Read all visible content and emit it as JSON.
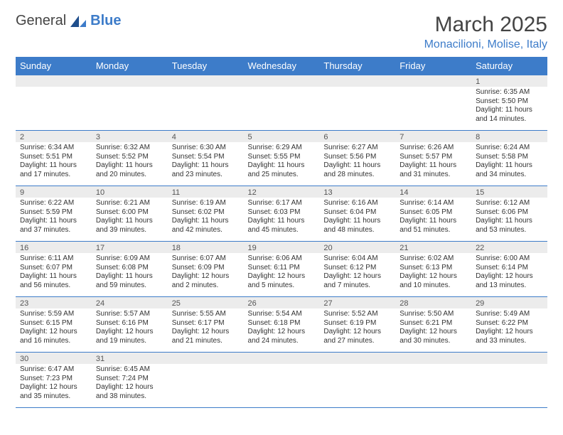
{
  "logo": {
    "word1": "General",
    "word2": "Blue"
  },
  "header": {
    "title": "March 2025",
    "location": "Monacilioni, Molise, Italy"
  },
  "colors": {
    "brand": "#3d7cc9",
    "grey_row": "#ececec",
    "text": "#333333"
  },
  "dayNames": [
    "Sunday",
    "Monday",
    "Tuesday",
    "Wednesday",
    "Thursday",
    "Friday",
    "Saturday"
  ],
  "weeks": [
    [
      {
        "n": "",
        "sr": "",
        "ss": "",
        "dl": ""
      },
      {
        "n": "",
        "sr": "",
        "ss": "",
        "dl": ""
      },
      {
        "n": "",
        "sr": "",
        "ss": "",
        "dl": ""
      },
      {
        "n": "",
        "sr": "",
        "ss": "",
        "dl": ""
      },
      {
        "n": "",
        "sr": "",
        "ss": "",
        "dl": ""
      },
      {
        "n": "",
        "sr": "",
        "ss": "",
        "dl": ""
      },
      {
        "n": "1",
        "sr": "Sunrise: 6:35 AM",
        "ss": "Sunset: 5:50 PM",
        "dl": "Daylight: 11 hours and 14 minutes."
      }
    ],
    [
      {
        "n": "2",
        "sr": "Sunrise: 6:34 AM",
        "ss": "Sunset: 5:51 PM",
        "dl": "Daylight: 11 hours and 17 minutes."
      },
      {
        "n": "3",
        "sr": "Sunrise: 6:32 AM",
        "ss": "Sunset: 5:52 PM",
        "dl": "Daylight: 11 hours and 20 minutes."
      },
      {
        "n": "4",
        "sr": "Sunrise: 6:30 AM",
        "ss": "Sunset: 5:54 PM",
        "dl": "Daylight: 11 hours and 23 minutes."
      },
      {
        "n": "5",
        "sr": "Sunrise: 6:29 AM",
        "ss": "Sunset: 5:55 PM",
        "dl": "Daylight: 11 hours and 25 minutes."
      },
      {
        "n": "6",
        "sr": "Sunrise: 6:27 AM",
        "ss": "Sunset: 5:56 PM",
        "dl": "Daylight: 11 hours and 28 minutes."
      },
      {
        "n": "7",
        "sr": "Sunrise: 6:26 AM",
        "ss": "Sunset: 5:57 PM",
        "dl": "Daylight: 11 hours and 31 minutes."
      },
      {
        "n": "8",
        "sr": "Sunrise: 6:24 AM",
        "ss": "Sunset: 5:58 PM",
        "dl": "Daylight: 11 hours and 34 minutes."
      }
    ],
    [
      {
        "n": "9",
        "sr": "Sunrise: 6:22 AM",
        "ss": "Sunset: 5:59 PM",
        "dl": "Daylight: 11 hours and 37 minutes."
      },
      {
        "n": "10",
        "sr": "Sunrise: 6:21 AM",
        "ss": "Sunset: 6:00 PM",
        "dl": "Daylight: 11 hours and 39 minutes."
      },
      {
        "n": "11",
        "sr": "Sunrise: 6:19 AM",
        "ss": "Sunset: 6:02 PM",
        "dl": "Daylight: 11 hours and 42 minutes."
      },
      {
        "n": "12",
        "sr": "Sunrise: 6:17 AM",
        "ss": "Sunset: 6:03 PM",
        "dl": "Daylight: 11 hours and 45 minutes."
      },
      {
        "n": "13",
        "sr": "Sunrise: 6:16 AM",
        "ss": "Sunset: 6:04 PM",
        "dl": "Daylight: 11 hours and 48 minutes."
      },
      {
        "n": "14",
        "sr": "Sunrise: 6:14 AM",
        "ss": "Sunset: 6:05 PM",
        "dl": "Daylight: 11 hours and 51 minutes."
      },
      {
        "n": "15",
        "sr": "Sunrise: 6:12 AM",
        "ss": "Sunset: 6:06 PM",
        "dl": "Daylight: 11 hours and 53 minutes."
      }
    ],
    [
      {
        "n": "16",
        "sr": "Sunrise: 6:11 AM",
        "ss": "Sunset: 6:07 PM",
        "dl": "Daylight: 11 hours and 56 minutes."
      },
      {
        "n": "17",
        "sr": "Sunrise: 6:09 AM",
        "ss": "Sunset: 6:08 PM",
        "dl": "Daylight: 11 hours and 59 minutes."
      },
      {
        "n": "18",
        "sr": "Sunrise: 6:07 AM",
        "ss": "Sunset: 6:09 PM",
        "dl": "Daylight: 12 hours and 2 minutes."
      },
      {
        "n": "19",
        "sr": "Sunrise: 6:06 AM",
        "ss": "Sunset: 6:11 PM",
        "dl": "Daylight: 12 hours and 5 minutes."
      },
      {
        "n": "20",
        "sr": "Sunrise: 6:04 AM",
        "ss": "Sunset: 6:12 PM",
        "dl": "Daylight: 12 hours and 7 minutes."
      },
      {
        "n": "21",
        "sr": "Sunrise: 6:02 AM",
        "ss": "Sunset: 6:13 PM",
        "dl": "Daylight: 12 hours and 10 minutes."
      },
      {
        "n": "22",
        "sr": "Sunrise: 6:00 AM",
        "ss": "Sunset: 6:14 PM",
        "dl": "Daylight: 12 hours and 13 minutes."
      }
    ],
    [
      {
        "n": "23",
        "sr": "Sunrise: 5:59 AM",
        "ss": "Sunset: 6:15 PM",
        "dl": "Daylight: 12 hours and 16 minutes."
      },
      {
        "n": "24",
        "sr": "Sunrise: 5:57 AM",
        "ss": "Sunset: 6:16 PM",
        "dl": "Daylight: 12 hours and 19 minutes."
      },
      {
        "n": "25",
        "sr": "Sunrise: 5:55 AM",
        "ss": "Sunset: 6:17 PM",
        "dl": "Daylight: 12 hours and 21 minutes."
      },
      {
        "n": "26",
        "sr": "Sunrise: 5:54 AM",
        "ss": "Sunset: 6:18 PM",
        "dl": "Daylight: 12 hours and 24 minutes."
      },
      {
        "n": "27",
        "sr": "Sunrise: 5:52 AM",
        "ss": "Sunset: 6:19 PM",
        "dl": "Daylight: 12 hours and 27 minutes."
      },
      {
        "n": "28",
        "sr": "Sunrise: 5:50 AM",
        "ss": "Sunset: 6:21 PM",
        "dl": "Daylight: 12 hours and 30 minutes."
      },
      {
        "n": "29",
        "sr": "Sunrise: 5:49 AM",
        "ss": "Sunset: 6:22 PM",
        "dl": "Daylight: 12 hours and 33 minutes."
      }
    ],
    [
      {
        "n": "30",
        "sr": "Sunrise: 6:47 AM",
        "ss": "Sunset: 7:23 PM",
        "dl": "Daylight: 12 hours and 35 minutes."
      },
      {
        "n": "31",
        "sr": "Sunrise: 6:45 AM",
        "ss": "Sunset: 7:24 PM",
        "dl": "Daylight: 12 hours and 38 minutes."
      },
      {
        "n": "",
        "sr": "",
        "ss": "",
        "dl": ""
      },
      {
        "n": "",
        "sr": "",
        "ss": "",
        "dl": ""
      },
      {
        "n": "",
        "sr": "",
        "ss": "",
        "dl": ""
      },
      {
        "n": "",
        "sr": "",
        "ss": "",
        "dl": ""
      },
      {
        "n": "",
        "sr": "",
        "ss": "",
        "dl": ""
      }
    ]
  ]
}
